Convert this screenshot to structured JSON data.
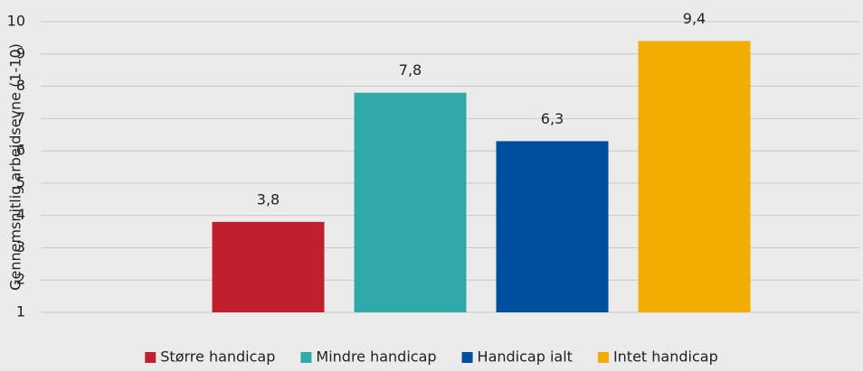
{
  "chart_data": {
    "type": "bar",
    "y_label": "Gennemsnitlig arbejdsevne (1-10)",
    "series": [
      {
        "name": "Større handicap",
        "color": "#c0202e",
        "values": [
          3.8
        ],
        "value_labels": [
          "3,8"
        ]
      },
      {
        "name": "Mindre handicap",
        "color": "#31a9aa",
        "values": [
          7.8
        ],
        "value_labels": [
          "7,8"
        ]
      },
      {
        "name": "Handicap ialt",
        "color": "#004f9c",
        "values": [
          6.3
        ],
        "value_labels": [
          "6,3"
        ]
      },
      {
        "name": "Intet handicap",
        "color": "#f2ad00",
        "values": [
          9.4
        ],
        "value_labels": [
          "9,4"
        ]
      }
    ],
    "ylim": [
      1,
      10
    ],
    "yticks": [
      1,
      2,
      3,
      4,
      5,
      6,
      7,
      8,
      9,
      10
    ],
    "grid": true,
    "legend": "bottom"
  }
}
